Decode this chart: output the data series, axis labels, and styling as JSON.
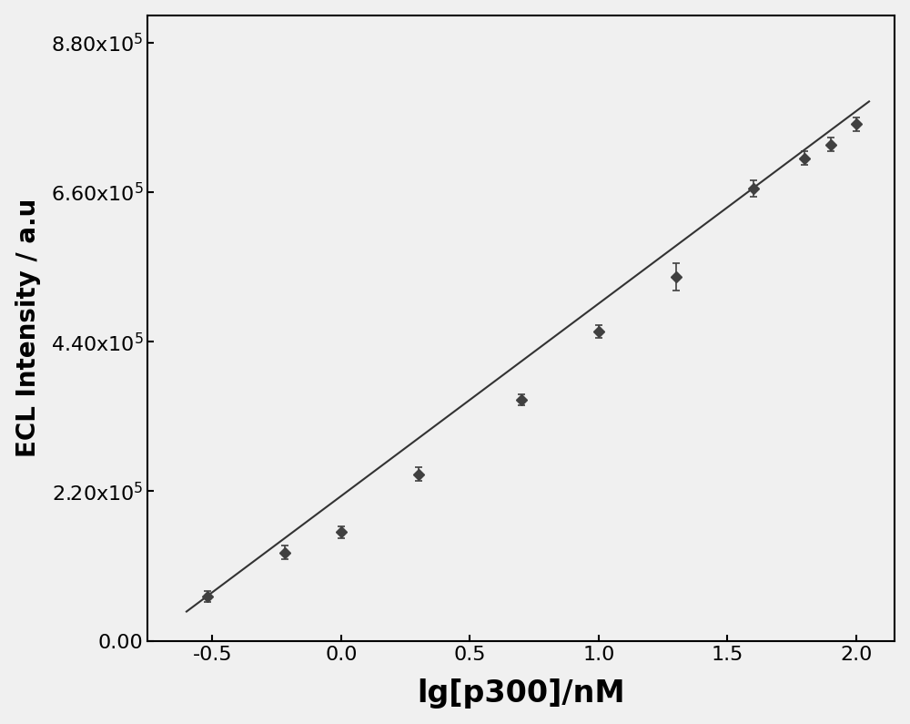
{
  "x_data": [
    -0.52,
    -0.22,
    0.0,
    0.3,
    0.7,
    1.0,
    1.3,
    1.6,
    1.8,
    1.9,
    2.0
  ],
  "y_data": [
    65000,
    130000,
    160000,
    245000,
    355000,
    455000,
    535000,
    665000,
    710000,
    730000,
    760000
  ],
  "y_err": [
    8000,
    10000,
    9000,
    10000,
    8000,
    10000,
    20000,
    12000,
    10000,
    10000,
    10000
  ],
  "fit_x": [
    -0.6,
    2.05
  ],
  "fit_slope": 283000,
  "fit_intercept": 213000,
  "xlabel": "lg[p300]/nM",
  "ylabel": "ECL Intensity / a.u",
  "xlim": [
    -0.75,
    2.15
  ],
  "ylim": [
    0,
    920000
  ],
  "yticks": [
    0,
    220000,
    440000,
    660000,
    880000
  ],
  "ytick_labels": [
    "0.00",
    "2.20x10$^5$",
    "4.40x10$^5$",
    "6.60x10$^5$",
    "8.80x10$^5$"
  ],
  "xticks": [
    -0.5,
    0.0,
    0.5,
    1.0,
    1.5,
    2.0
  ],
  "xtick_labels": [
    "-0.5",
    "0.0",
    "0.5",
    "1.0",
    "1.5",
    "2.0"
  ],
  "marker_color": "#404040",
  "line_color": "#333333",
  "background_color": "#f0f0f0",
  "marker_size": 6,
  "linewidth": 1.5,
  "xlabel_fontsize": 24,
  "ylabel_fontsize": 20,
  "tick_fontsize": 16
}
